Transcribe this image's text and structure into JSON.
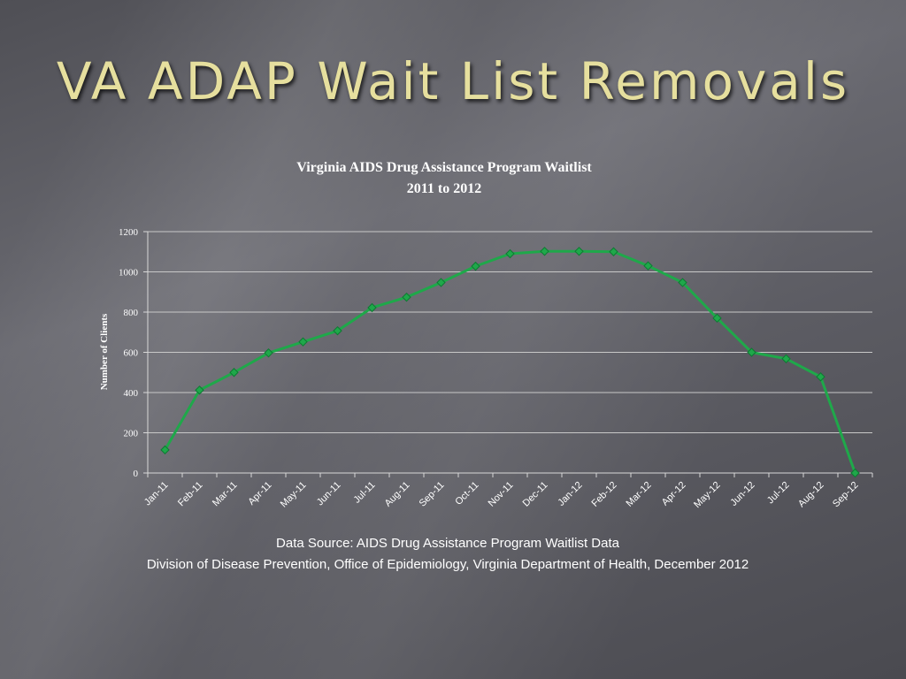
{
  "slide": {
    "title": "VA ADAP Wait List Removals"
  },
  "chart_data": {
    "type": "line",
    "title": "Virginia AIDS Drug Assistance Program Waitlist",
    "subtitle": "2011 to 2012",
    "xlabel": "",
    "ylabel": "Number of Clients",
    "ylim": [
      0,
      1200
    ],
    "yticks": [
      0,
      200,
      400,
      600,
      800,
      1000,
      1200
    ],
    "grid": true,
    "legend": "none",
    "categories": [
      "Jan-11",
      "Feb-11",
      "Mar-11",
      "Apr-11",
      "May-11",
      "Jun-11",
      "Jul-11",
      "Aug-11",
      "Sep-11",
      "Oct-11",
      "Nov-11",
      "Dec-11",
      "Jan-12",
      "Feb-12",
      "Mar-12",
      "Apr-12",
      "May-12",
      "Jun-12",
      "Jul-12",
      "Aug-12",
      "Sep-12"
    ],
    "series": [
      {
        "values": [
          115,
          412,
          500,
          597,
          652,
          707,
          822,
          874,
          947,
          1028,
          1090,
          1102,
          1102,
          1100,
          1030,
          947,
          770,
          600,
          568,
          478,
          0
        ],
        "color": "#1fa84a",
        "marker": "diamond"
      }
    ],
    "colors": {
      "gridline": "#c8c8c8",
      "axis": "#d8d8d8",
      "text": "#ffffff"
    }
  },
  "source": {
    "line1": "Data Source: AIDS Drug Assistance Program Waitlist Data",
    "line2": "Division of Disease Prevention, Office of Epidemiology, Virginia Department of Health, December 2012"
  }
}
